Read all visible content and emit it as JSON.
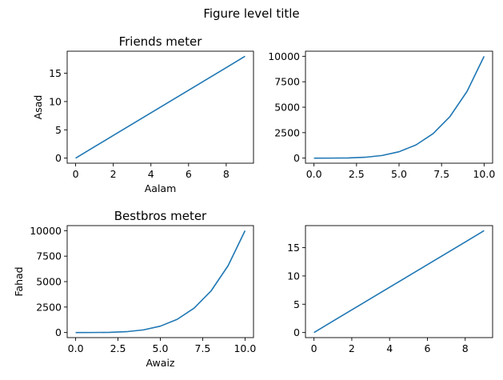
{
  "figure": {
    "suptitle": "Figure level title"
  },
  "chart_data": [
    {
      "type": "line",
      "title": "Friends meter",
      "xlabel": "Aalam",
      "ylabel": "Asad",
      "x": [
        0,
        1,
        2,
        3,
        4,
        5,
        6,
        7,
        8,
        9
      ],
      "series": [
        {
          "values": [
            0,
            2,
            4,
            6,
            8,
            10,
            12,
            14,
            16,
            18
          ]
        }
      ],
      "xlim": [
        -0.45,
        9.45
      ],
      "ylim": [
        -0.9,
        18.9
      ],
      "xticks": [
        0,
        2,
        4,
        6,
        8
      ],
      "xtick_labels": [
        "0",
        "2",
        "4",
        "6",
        "8"
      ],
      "yticks": [
        0,
        5,
        10,
        15
      ],
      "ytick_labels": [
        "0",
        "5",
        "10",
        "15"
      ],
      "color": "#1f77b4",
      "grid": false
    },
    {
      "type": "line",
      "title": "",
      "xlabel": "",
      "ylabel": "",
      "x": [
        0,
        1,
        2,
        3,
        4,
        5,
        6,
        7,
        8,
        9,
        10
      ],
      "series": [
        {
          "values": [
            0,
            1,
            16,
            81,
            256,
            625,
            1296,
            2401,
            4096,
            6561,
            10000
          ]
        }
      ],
      "xlim": [
        -0.5,
        10.5
      ],
      "ylim": [
        -500,
        10500
      ],
      "xticks": [
        0,
        2.5,
        5,
        7.5,
        10
      ],
      "xtick_labels": [
        "0.0",
        "2.5",
        "5.0",
        "7.5",
        "10.0"
      ],
      "yticks": [
        0,
        2500,
        5000,
        7500,
        10000
      ],
      "ytick_labels": [
        "0",
        "2500",
        "5000",
        "7500",
        "10000"
      ],
      "color": "#1f77b4",
      "grid": false
    },
    {
      "type": "line",
      "title": "Bestbros meter",
      "xlabel": "Awaiz",
      "ylabel": "Fahad",
      "x": [
        0,
        1,
        2,
        3,
        4,
        5,
        6,
        7,
        8,
        9,
        10
      ],
      "series": [
        {
          "values": [
            0,
            1,
            16,
            81,
            256,
            625,
            1296,
            2401,
            4096,
            6561,
            10000
          ]
        }
      ],
      "xlim": [
        -0.5,
        10.5
      ],
      "ylim": [
        -500,
        10500
      ],
      "xticks": [
        0,
        2.5,
        5,
        7.5,
        10
      ],
      "xtick_labels": [
        "0.0",
        "2.5",
        "5.0",
        "7.5",
        "10.0"
      ],
      "yticks": [
        0,
        2500,
        5000,
        7500,
        10000
      ],
      "ytick_labels": [
        "0",
        "2500",
        "5000",
        "7500",
        "10000"
      ],
      "color": "#1f77b4",
      "grid": false
    },
    {
      "type": "line",
      "title": "",
      "xlabel": "",
      "ylabel": "",
      "x": [
        0,
        1,
        2,
        3,
        4,
        5,
        6,
        7,
        8,
        9
      ],
      "series": [
        {
          "values": [
            0,
            2,
            4,
            6,
            8,
            10,
            12,
            14,
            16,
            18
          ]
        }
      ],
      "xlim": [
        -0.45,
        9.45
      ],
      "ylim": [
        -0.9,
        18.9
      ],
      "xticks": [
        0,
        2,
        4,
        6,
        8
      ],
      "xtick_labels": [
        "0",
        "2",
        "4",
        "6",
        "8"
      ],
      "yticks": [
        0,
        5,
        10,
        15
      ],
      "ytick_labels": [
        "0",
        "5",
        "10",
        "15"
      ],
      "color": "#1f77b4",
      "grid": false
    }
  ]
}
